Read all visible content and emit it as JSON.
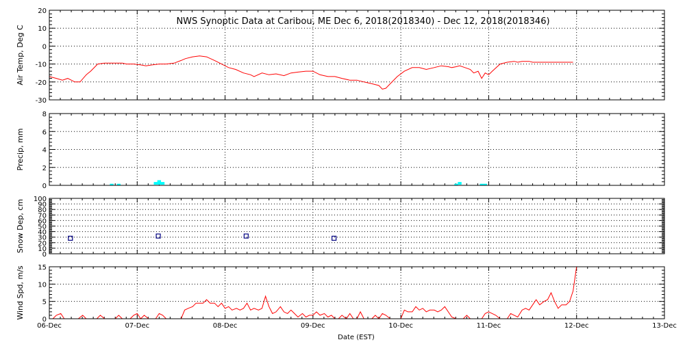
{
  "chart_data": {
    "title": "NWS Synoptic Data at Caribou, ME   Dec  6, 2018(2018340) - Dec 12, 2018(2018346)",
    "xlabel": "Date (EST)",
    "x_tick_labels": [
      "06-Dec",
      "07-Dec",
      "08-Dec",
      "09-Dec",
      "10-Dec",
      "11-Dec",
      "12-Dec",
      "13-Dec"
    ],
    "x_range_days": [
      0,
      7
    ],
    "panels": [
      {
        "id": "air-temp",
        "type": "line",
        "ylabel": "Air Temp, Deg C",
        "ylim": [
          -30,
          20
        ],
        "yticks": [
          -30,
          -20,
          -10,
          0,
          10,
          20
        ],
        "color": "#ff0000",
        "series": [
          {
            "x": 0.0,
            "y": -17
          },
          {
            "x": 0.08,
            "y": -18
          },
          {
            "x": 0.15,
            "y": -19
          },
          {
            "x": 0.21,
            "y": -18
          },
          {
            "x": 0.29,
            "y": -20
          },
          {
            "x": 0.35,
            "y": -20
          },
          {
            "x": 0.42,
            "y": -16
          },
          {
            "x": 0.47,
            "y": -14
          },
          {
            "x": 0.55,
            "y": -10
          },
          {
            "x": 0.63,
            "y": -9.5
          },
          {
            "x": 0.71,
            "y": -9.5
          },
          {
            "x": 0.83,
            "y": -9.5
          },
          {
            "x": 0.88,
            "y": -10
          },
          {
            "x": 0.96,
            "y": -10
          },
          {
            "x": 1.04,
            "y": -10.5
          },
          {
            "x": 1.1,
            "y": -11
          },
          {
            "x": 1.17,
            "y": -10.5
          },
          {
            "x": 1.25,
            "y": -10
          },
          {
            "x": 1.33,
            "y": -10
          },
          {
            "x": 1.42,
            "y": -9.5
          },
          {
            "x": 1.5,
            "y": -8
          },
          {
            "x": 1.55,
            "y": -7
          },
          {
            "x": 1.63,
            "y": -6
          },
          {
            "x": 1.71,
            "y": -5.5
          },
          {
            "x": 1.79,
            "y": -6
          },
          {
            "x": 1.88,
            "y": -8
          },
          {
            "x": 1.96,
            "y": -10
          },
          {
            "x": 2.04,
            "y": -12
          },
          {
            "x": 2.12,
            "y": -13
          },
          {
            "x": 2.21,
            "y": -15
          },
          {
            "x": 2.29,
            "y": -16
          },
          {
            "x": 2.33,
            "y": -17
          },
          {
            "x": 2.42,
            "y": -15
          },
          {
            "x": 2.5,
            "y": -16
          },
          {
            "x": 2.58,
            "y": -15.5
          },
          {
            "x": 2.67,
            "y": -16.5
          },
          {
            "x": 2.75,
            "y": -15
          },
          {
            "x": 2.83,
            "y": -14.5
          },
          {
            "x": 2.92,
            "y": -14
          },
          {
            "x": 3.0,
            "y": -14
          },
          {
            "x": 3.08,
            "y": -16
          },
          {
            "x": 3.17,
            "y": -17
          },
          {
            "x": 3.25,
            "y": -17
          },
          {
            "x": 3.33,
            "y": -18
          },
          {
            "x": 3.42,
            "y": -19
          },
          {
            "x": 3.5,
            "y": -19
          },
          {
            "x": 3.58,
            "y": -20
          },
          {
            "x": 3.67,
            "y": -21
          },
          {
            "x": 3.75,
            "y": -22
          },
          {
            "x": 3.79,
            "y": -24
          },
          {
            "x": 3.83,
            "y": -23.5
          },
          {
            "x": 3.88,
            "y": -21
          },
          {
            "x": 3.96,
            "y": -17
          },
          {
            "x": 4.04,
            "y": -14
          },
          {
            "x": 4.13,
            "y": -12
          },
          {
            "x": 4.21,
            "y": -12
          },
          {
            "x": 4.29,
            "y": -13
          },
          {
            "x": 4.38,
            "y": -12
          },
          {
            "x": 4.46,
            "y": -11
          },
          {
            "x": 4.54,
            "y": -11.5
          },
          {
            "x": 4.58,
            "y": -12
          },
          {
            "x": 4.63,
            "y": -11.5
          },
          {
            "x": 4.67,
            "y": -11
          },
          {
            "x": 4.73,
            "y": -12
          },
          {
            "x": 4.79,
            "y": -13
          },
          {
            "x": 4.83,
            "y": -15
          },
          {
            "x": 4.88,
            "y": -14
          },
          {
            "x": 4.92,
            "y": -18
          },
          {
            "x": 4.96,
            "y": -15
          },
          {
            "x": 5.0,
            "y": -16
          },
          {
            "x": 5.04,
            "y": -14
          },
          {
            "x": 5.13,
            "y": -10
          },
          {
            "x": 5.21,
            "y": -9
          },
          {
            "x": 5.29,
            "y": -8.5
          },
          {
            "x": 5.33,
            "y": -9
          },
          {
            "x": 5.38,
            "y": -8.5
          },
          {
            "x": 5.46,
            "y": -8.5
          },
          {
            "x": 5.5,
            "y": -9
          },
          {
            "x": 5.83,
            "y": -9
          },
          {
            "x": 5.96,
            "y": -9
          }
        ]
      },
      {
        "id": "precip",
        "type": "bar",
        "ylabel": "Precip, mm",
        "ylim": [
          0,
          8
        ],
        "yticks": [
          0,
          2,
          4,
          6,
          8
        ],
        "color": "#00ffff",
        "bar_width_days": 0.042,
        "series": [
          {
            "x": 0.71,
            "y": 0.1
          },
          {
            "x": 0.79,
            "y": 0.1
          },
          {
            "x": 1.21,
            "y": 0.3
          },
          {
            "x": 1.25,
            "y": 0.5
          },
          {
            "x": 1.29,
            "y": 0.3
          },
          {
            "x": 4.63,
            "y": 0.1
          },
          {
            "x": 4.67,
            "y": 0.3
          },
          {
            "x": 4.92,
            "y": 0.1
          },
          {
            "x": 4.96,
            "y": 0.1
          }
        ]
      },
      {
        "id": "snow-depth",
        "type": "scatter",
        "ylabel": "Snow Dep, cm",
        "ylim": [
          0,
          100
        ],
        "yticks": [
          0,
          10,
          20,
          30,
          40,
          50,
          60,
          70,
          80,
          90,
          100
        ],
        "color": "#000080",
        "series": [
          {
            "x": 0.24,
            "y": 28
          },
          {
            "x": 1.24,
            "y": 32
          },
          {
            "x": 2.24,
            "y": 32
          },
          {
            "x": 3.24,
            "y": 28
          }
        ]
      },
      {
        "id": "wind-speed",
        "type": "line",
        "ylabel": "Wind Spd, m/s",
        "ylim": [
          0,
          15
        ],
        "yticks": [
          0,
          5,
          10,
          15
        ],
        "color": "#ff0000",
        "series": [
          {
            "x": 0.0,
            "y": 0
          },
          {
            "x": 0.04,
            "y": 0
          },
          {
            "x": 0.08,
            "y": 1
          },
          {
            "x": 0.13,
            "y": 1.5
          },
          {
            "x": 0.17,
            "y": 0
          },
          {
            "x": 0.25,
            "y": 0
          },
          {
            "x": 0.29,
            "y": 0
          },
          {
            "x": 0.33,
            "y": 0
          },
          {
            "x": 0.38,
            "y": 1
          },
          {
            "x": 0.42,
            "y": 0
          },
          {
            "x": 0.5,
            "y": 0
          },
          {
            "x": 0.54,
            "y": 0
          },
          {
            "x": 0.58,
            "y": 1
          },
          {
            "x": 0.63,
            "y": 0
          },
          {
            "x": 0.71,
            "y": 0
          },
          {
            "x": 0.75,
            "y": 0
          },
          {
            "x": 0.79,
            "y": 1
          },
          {
            "x": 0.83,
            "y": 0
          },
          {
            "x": 0.92,
            "y": 0
          },
          {
            "x": 0.96,
            "y": 1
          },
          {
            "x": 1.0,
            "y": 1.5
          },
          {
            "x": 1.04,
            "y": 0
          },
          {
            "x": 1.08,
            "y": 1
          },
          {
            "x": 1.13,
            "y": 0
          },
          {
            "x": 1.17,
            "y": 0
          },
          {
            "x": 1.21,
            "y": 0
          },
          {
            "x": 1.25,
            "y": 1.5
          },
          {
            "x": 1.29,
            "y": 1
          },
          {
            "x": 1.33,
            "y": 0
          },
          {
            "x": 1.42,
            "y": 0
          },
          {
            "x": 1.5,
            "y": 0
          },
          {
            "x": 1.54,
            "y": 2.5
          },
          {
            "x": 1.58,
            "y": 3
          },
          {
            "x": 1.63,
            "y": 3.5
          },
          {
            "x": 1.67,
            "y": 4.5
          },
          {
            "x": 1.71,
            "y": 4.5
          },
          {
            "x": 1.75,
            "y": 4.5
          },
          {
            "x": 1.79,
            "y": 5.5
          },
          {
            "x": 1.83,
            "y": 4.5
          },
          {
            "x": 1.88,
            "y": 4.5
          },
          {
            "x": 1.92,
            "y": 3.5
          },
          {
            "x": 1.96,
            "y": 4.5
          },
          {
            "x": 2.0,
            "y": 3
          },
          {
            "x": 2.04,
            "y": 3.5
          },
          {
            "x": 2.08,
            "y": 2.5
          },
          {
            "x": 2.13,
            "y": 3
          },
          {
            "x": 2.17,
            "y": 2.5
          },
          {
            "x": 2.21,
            "y": 3
          },
          {
            "x": 2.25,
            "y": 4.5
          },
          {
            "x": 2.29,
            "y": 2.5
          },
          {
            "x": 2.33,
            "y": 3
          },
          {
            "x": 2.38,
            "y": 2.5
          },
          {
            "x": 2.42,
            "y": 3
          },
          {
            "x": 2.46,
            "y": 6.5
          },
          {
            "x": 2.5,
            "y": 3.5
          },
          {
            "x": 2.54,
            "y": 1.5
          },
          {
            "x": 2.58,
            "y": 2
          },
          {
            "x": 2.63,
            "y": 3.5
          },
          {
            "x": 2.67,
            "y": 2
          },
          {
            "x": 2.71,
            "y": 1.5
          },
          {
            "x": 2.75,
            "y": 2.5
          },
          {
            "x": 2.79,
            "y": 1.5
          },
          {
            "x": 2.83,
            "y": 0.5
          },
          {
            "x": 2.88,
            "y": 1.5
          },
          {
            "x": 2.92,
            "y": 0.5
          },
          {
            "x": 2.96,
            "y": 1
          },
          {
            "x": 3.0,
            "y": 1
          },
          {
            "x": 3.04,
            "y": 2
          },
          {
            "x": 3.08,
            "y": 1
          },
          {
            "x": 3.13,
            "y": 1.5
          },
          {
            "x": 3.17,
            "y": 0.5
          },
          {
            "x": 3.21,
            "y": 1
          },
          {
            "x": 3.25,
            "y": 0
          },
          {
            "x": 3.29,
            "y": 0
          },
          {
            "x": 3.33,
            "y": 1
          },
          {
            "x": 3.38,
            "y": 0
          },
          {
            "x": 3.42,
            "y": 1.5
          },
          {
            "x": 3.46,
            "y": 0
          },
          {
            "x": 3.5,
            "y": 0
          },
          {
            "x": 3.54,
            "y": 2
          },
          {
            "x": 3.58,
            "y": 0
          },
          {
            "x": 3.63,
            "y": 0
          },
          {
            "x": 3.67,
            "y": 0
          },
          {
            "x": 3.71,
            "y": 1
          },
          {
            "x": 3.75,
            "y": 0
          },
          {
            "x": 3.79,
            "y": 1.5
          },
          {
            "x": 3.83,
            "y": 1
          },
          {
            "x": 3.88,
            "y": 0
          },
          {
            "x": 3.92,
            "y": 0
          },
          {
            "x": 3.96,
            "y": 0
          },
          {
            "x": 4.0,
            "y": 0
          },
          {
            "x": 4.04,
            "y": 2.5
          },
          {
            "x": 4.08,
            "y": 2
          },
          {
            "x": 4.13,
            "y": 2
          },
          {
            "x": 4.17,
            "y": 3.5
          },
          {
            "x": 4.21,
            "y": 2.5
          },
          {
            "x": 4.25,
            "y": 3
          },
          {
            "x": 4.29,
            "y": 2
          },
          {
            "x": 4.33,
            "y": 2.5
          },
          {
            "x": 4.38,
            "y": 2.5
          },
          {
            "x": 4.42,
            "y": 2
          },
          {
            "x": 4.46,
            "y": 2.5
          },
          {
            "x": 4.5,
            "y": 3.5
          },
          {
            "x": 4.54,
            "y": 2
          },
          {
            "x": 4.58,
            "y": 0.5
          },
          {
            "x": 4.63,
            "y": 0
          },
          {
            "x": 4.67,
            "y": 0
          },
          {
            "x": 4.71,
            "y": 0
          },
          {
            "x": 4.75,
            "y": 1
          },
          {
            "x": 4.79,
            "y": 0
          },
          {
            "x": 4.83,
            "y": 0
          },
          {
            "x": 4.88,
            "y": 0
          },
          {
            "x": 4.92,
            "y": 0
          },
          {
            "x": 4.96,
            "y": 1.5
          },
          {
            "x": 5.0,
            "y": 2
          },
          {
            "x": 5.04,
            "y": 1.5
          },
          {
            "x": 5.08,
            "y": 1
          },
          {
            "x": 5.13,
            "y": 0
          },
          {
            "x": 5.17,
            "y": 0
          },
          {
            "x": 5.21,
            "y": 0
          },
          {
            "x": 5.25,
            "y": 1.5
          },
          {
            "x": 5.29,
            "y": 1
          },
          {
            "x": 5.33,
            "y": 0.5
          },
          {
            "x": 5.38,
            "y": 2.5
          },
          {
            "x": 5.42,
            "y": 3
          },
          {
            "x": 5.46,
            "y": 2.5
          },
          {
            "x": 5.5,
            "y": 4
          },
          {
            "x": 5.54,
            "y": 5.5
          },
          {
            "x": 5.58,
            "y": 4
          },
          {
            "x": 5.63,
            "y": 5
          },
          {
            "x": 5.67,
            "y": 5.5
          },
          {
            "x": 5.71,
            "y": 7.5
          },
          {
            "x": 5.75,
            "y": 5
          },
          {
            "x": 5.79,
            "y": 3
          },
          {
            "x": 5.83,
            "y": 4
          },
          {
            "x": 5.88,
            "y": 4
          },
          {
            "x": 5.92,
            "y": 5
          },
          {
            "x": 5.96,
            "y": 8
          },
          {
            "x": 6.0,
            "y": 15
          }
        ]
      }
    ]
  }
}
